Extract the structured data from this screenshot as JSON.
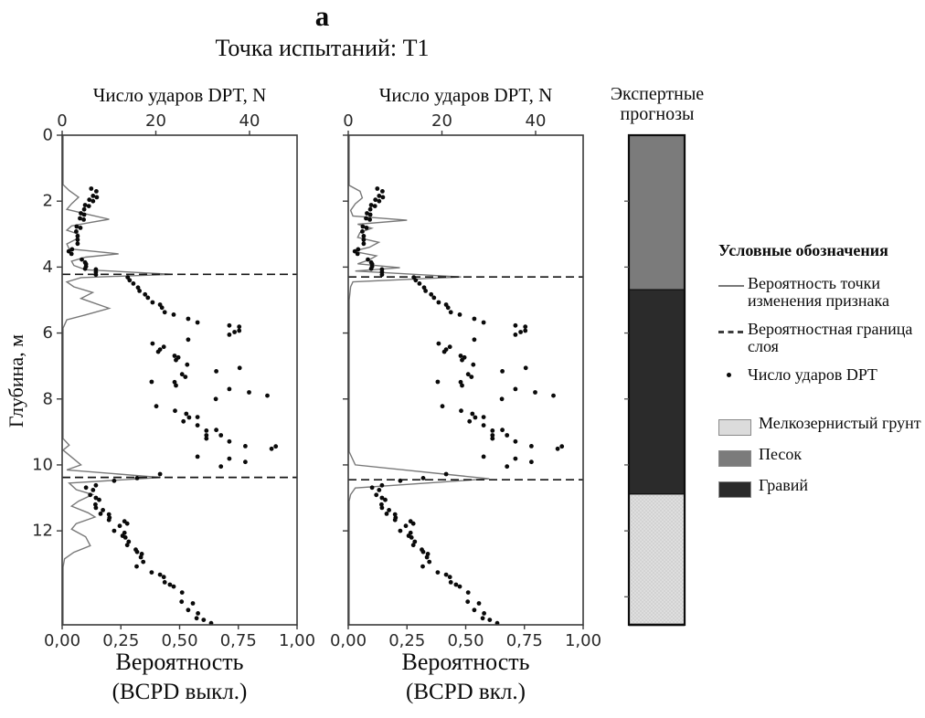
{
  "title_letter": "а",
  "subtitle": "Точка испытаний: Т1",
  "panels": [
    {
      "top_axis_label": "Число ударов DPT, N",
      "bottom_label": "Вероятность",
      "bottom_sublabel": "(BCPD выкл.)"
    },
    {
      "top_axis_label": "Число ударов DPT, N",
      "bottom_label": "Вероятность",
      "bottom_sublabel": "(BCPD вкл.)"
    }
  ],
  "axes": {
    "depth_label": "Глубина, м",
    "depth_ticks": [
      0,
      2,
      4,
      6,
      8,
      10,
      12
    ],
    "top_ticks": [
      0,
      20,
      40
    ],
    "prob_tick_labels": [
      "0,00",
      "0,25",
      "0,50",
      "0,75",
      "1,00"
    ],
    "prob_ticks": [
      0,
      0.25,
      0.5,
      0.75,
      1.0
    ]
  },
  "expert_column": {
    "header": "Экспертные прогнозы",
    "layers": [
      {
        "label": "Песок",
        "from_m": 0,
        "to_m": 4.7,
        "color": "#7b7b7b"
      },
      {
        "label": "Гравий",
        "from_m": 4.7,
        "to_m": 10.9,
        "color": "#2b2b2b"
      },
      {
        "label": "Мелкозернистый грунт",
        "from_m": 10.9,
        "to_m": 14.85,
        "color": "#dcdcdc"
      }
    ]
  },
  "legend": {
    "title": "Условные обозначения",
    "items": [
      {
        "marker": "solid-line",
        "label": "Вероятность точки изменения признака",
        "color": "#787878"
      },
      {
        "marker": "dashed-line",
        "label": "Вероятностная граница слоя",
        "color": "#3d3d3d"
      },
      {
        "marker": "dot",
        "label": "Число ударов DPT",
        "color": "#0a0a0a"
      }
    ],
    "soil_items": [
      {
        "label": "Мелкозернистый грунт",
        "color": "#dcdcdc"
      },
      {
        "label": "Песок",
        "color": "#7b7b7b"
      },
      {
        "label": "Гравий",
        "color": "#2b2b2b"
      }
    ]
  },
  "chart_data": {
    "type": "scatter",
    "title": "Точка испытаний: Т1",
    "x_top": {
      "label": "Число ударов DPT, N",
      "ticks": [
        0,
        20,
        40
      ],
      "range": [
        0,
        50.15
      ]
    },
    "x_bottom": {
      "label": "Вероятность",
      "ticks": [
        0,
        0.25,
        0.5,
        0.75,
        1.0
      ],
      "range": [
        0,
        1
      ]
    },
    "y": {
      "label": "Глубина, м",
      "ticks": [
        0,
        2,
        4,
        6,
        8,
        10,
        12
      ],
      "range": [
        0,
        14.85
      ],
      "inverted": true
    },
    "dpt_points_N_depth": [
      [
        6.2,
        1.62
      ],
      [
        7.3,
        1.7
      ],
      [
        6.6,
        1.84
      ],
      [
        7.4,
        1.88
      ],
      [
        5.8,
        1.96
      ],
      [
        6.6,
        2.0
      ],
      [
        4.9,
        2.12
      ],
      [
        5.7,
        2.15
      ],
      [
        4.7,
        2.25
      ],
      [
        4.0,
        2.37
      ],
      [
        4.7,
        2.41
      ],
      [
        3.8,
        2.52
      ],
      [
        4.6,
        2.56
      ],
      [
        3.1,
        2.77
      ],
      [
        3.9,
        2.81
      ],
      [
        3.0,
        2.92
      ],
      [
        3.3,
        3.06
      ],
      [
        3.3,
        3.17
      ],
      [
        3.3,
        3.29
      ],
      [
        2.1,
        3.46
      ],
      [
        1.4,
        3.52
      ],
      [
        2.0,
        3.6
      ],
      [
        4.2,
        3.77
      ],
      [
        4.9,
        3.86
      ],
      [
        5.1,
        3.91
      ],
      [
        5.1,
        3.98
      ],
      [
        4.9,
        4.05
      ],
      [
        7.2,
        4.07
      ],
      [
        7.2,
        4.15
      ],
      [
        7.2,
        4.23
      ],
      [
        14.0,
        4.31
      ],
      [
        14.4,
        4.4
      ],
      [
        15.2,
        4.5
      ],
      [
        16.2,
        4.62
      ],
      [
        16.5,
        4.72
      ],
      [
        17.7,
        4.83
      ],
      [
        18.3,
        4.93
      ],
      [
        19.3,
        5.07
      ],
      [
        20.9,
        5.14
      ],
      [
        21.3,
        5.23
      ],
      [
        21.9,
        5.37
      ],
      [
        23.8,
        5.44
      ],
      [
        26.9,
        5.57
      ],
      [
        28.9,
        5.68
      ],
      [
        35.7,
        5.77
      ],
      [
        37.8,
        5.81
      ],
      [
        37.8,
        5.93
      ],
      [
        36.8,
        5.97
      ],
      [
        35.7,
        6.05
      ],
      [
        26.9,
        6.2
      ],
      [
        19.3,
        6.32
      ],
      [
        21.7,
        6.42
      ],
      [
        20.9,
        6.5
      ],
      [
        20.5,
        6.57
      ],
      [
        24.0,
        6.69
      ],
      [
        24.8,
        6.74
      ],
      [
        24.3,
        6.82
      ],
      [
        26.7,
        6.96
      ],
      [
        37.9,
        7.06
      ],
      [
        32.9,
        7.16
      ],
      [
        25.6,
        7.25
      ],
      [
        26.3,
        7.33
      ],
      [
        19.1,
        7.48
      ],
      [
        24.0,
        7.49
      ],
      [
        24.3,
        7.59
      ],
      [
        35.7,
        7.7
      ],
      [
        39.9,
        7.8
      ],
      [
        43.8,
        7.9
      ],
      [
        32.8,
        8.0
      ],
      [
        20.1,
        8.22
      ],
      [
        24.1,
        8.36
      ],
      [
        26.5,
        8.45
      ],
      [
        28.9,
        8.55
      ],
      [
        27.1,
        8.56
      ],
      [
        25.9,
        8.68
      ],
      [
        28.9,
        8.8
      ],
      [
        32.9,
        8.94
      ],
      [
        30.8,
        8.96
      ],
      [
        30.8,
        9.1
      ],
      [
        33.9,
        9.1
      ],
      [
        30.8,
        9.2
      ],
      [
        35.7,
        9.29
      ],
      [
        39.1,
        9.43
      ],
      [
        45.6,
        9.44
      ],
      [
        44.7,
        9.51
      ],
      [
        28.9,
        9.75
      ],
      [
        35.7,
        9.81
      ],
      [
        39.1,
        9.91
      ],
      [
        33.9,
        10.05
      ],
      [
        20.9,
        10.28
      ],
      [
        16.0,
        10.4
      ],
      [
        11.1,
        10.48
      ],
      [
        7.2,
        10.62
      ],
      [
        5.1,
        10.69
      ],
      [
        6.6,
        10.76
      ],
      [
        6.0,
        10.91
      ],
      [
        7.2,
        11.0
      ],
      [
        7.9,
        11.06
      ],
      [
        7.1,
        11.2
      ],
      [
        7.2,
        11.3
      ],
      [
        8.7,
        11.37
      ],
      [
        8.2,
        11.48
      ],
      [
        10.0,
        11.5
      ],
      [
        10.1,
        11.6
      ],
      [
        10.0,
        11.67
      ],
      [
        13.3,
        11.71
      ],
      [
        13.9,
        11.78
      ],
      [
        12.3,
        11.85
      ],
      [
        11.1,
        12.0
      ],
      [
        13.3,
        12.06
      ],
      [
        12.9,
        12.15
      ],
      [
        13.5,
        12.2
      ],
      [
        14.2,
        12.33
      ],
      [
        13.9,
        12.43
      ],
      [
        15.7,
        12.57
      ],
      [
        16.0,
        12.64
      ],
      [
        17.0,
        12.7
      ],
      [
        16.8,
        12.8
      ],
      [
        17.3,
        12.94
      ],
      [
        15.9,
        13.08
      ],
      [
        19.1,
        13.26
      ],
      [
        20.9,
        13.33
      ],
      [
        21.7,
        13.4
      ],
      [
        21.9,
        13.56
      ],
      [
        23.0,
        13.63
      ],
      [
        23.8,
        13.69
      ],
      [
        25.6,
        13.87
      ],
      [
        25.5,
        14.15
      ],
      [
        27.9,
        14.2
      ],
      [
        26.9,
        14.4
      ],
      [
        29.0,
        14.5
      ],
      [
        28.7,
        14.65
      ],
      [
        30.2,
        14.7
      ],
      [
        31.8,
        14.8
      ]
    ],
    "panels": [
      {
        "name": "BCPD выкл.",
        "layer_boundaries_depth_m": [
          4.22,
          10.38
        ],
        "changepoint_curve_prob_depth": [
          [
            0.004,
            0
          ],
          [
            0.004,
            1.5
          ],
          [
            0.03,
            1.68
          ],
          [
            0.07,
            1.88
          ],
          [
            0.04,
            2.08
          ],
          [
            0.02,
            2.25
          ],
          [
            0.12,
            2.42
          ],
          [
            0.2,
            2.55
          ],
          [
            0.12,
            2.65
          ],
          [
            0.04,
            2.75
          ],
          [
            0.02,
            2.88
          ],
          [
            0.07,
            3.0
          ],
          [
            0.06,
            3.15
          ],
          [
            0.02,
            3.3
          ],
          [
            0.03,
            3.45
          ],
          [
            0.24,
            3.6
          ],
          [
            0.1,
            3.7
          ],
          [
            0.04,
            3.82
          ],
          [
            0.05,
            3.95
          ],
          [
            0.1,
            4.08
          ],
          [
            0.47,
            4.22
          ],
          [
            0.08,
            4.32
          ],
          [
            0.02,
            4.45
          ],
          [
            0.05,
            4.6
          ],
          [
            0.13,
            4.77
          ],
          [
            0.08,
            4.95
          ],
          [
            0.2,
            5.25
          ],
          [
            0.1,
            5.45
          ],
          [
            0.02,
            5.6
          ],
          [
            0.004,
            5.85
          ],
          [
            0.004,
            9.2
          ],
          [
            0.03,
            9.4
          ],
          [
            0.004,
            9.55
          ],
          [
            0.08,
            10.0
          ],
          [
            0.02,
            10.15
          ],
          [
            0.42,
            10.38
          ],
          [
            0.03,
            10.55
          ],
          [
            0.06,
            10.75
          ],
          [
            0.13,
            10.9
          ],
          [
            0.07,
            11.1
          ],
          [
            0.04,
            11.25
          ],
          [
            0.11,
            11.45
          ],
          [
            0.14,
            11.58
          ],
          [
            0.06,
            11.78
          ],
          [
            0.04,
            11.95
          ],
          [
            0.1,
            12.18
          ],
          [
            0.12,
            12.45
          ],
          [
            0.05,
            12.65
          ],
          [
            0.01,
            12.85
          ],
          [
            0.004,
            13.1
          ],
          [
            0.004,
            14.85
          ]
        ]
      },
      {
        "name": "BCPD вкл.",
        "layer_boundaries_depth_m": [
          4.3,
          10.45
        ],
        "changepoint_curve_prob_depth": [
          [
            0.004,
            0
          ],
          [
            0.004,
            1.52
          ],
          [
            0.05,
            1.7
          ],
          [
            0.06,
            1.9
          ],
          [
            0.03,
            2.08
          ],
          [
            0.01,
            2.28
          ],
          [
            0.02,
            2.45
          ],
          [
            0.25,
            2.58
          ],
          [
            0.04,
            2.7
          ],
          [
            0.1,
            2.82
          ],
          [
            0.05,
            2.95
          ],
          [
            0.04,
            3.1
          ],
          [
            0.13,
            3.25
          ],
          [
            0.09,
            3.4
          ],
          [
            0.02,
            3.52
          ],
          [
            0.12,
            3.66
          ],
          [
            0.09,
            3.78
          ],
          [
            0.04,
            3.9
          ],
          [
            0.22,
            4.02
          ],
          [
            0.03,
            4.12
          ],
          [
            0.48,
            4.3
          ],
          [
            0.02,
            4.45
          ],
          [
            0.01,
            4.6
          ],
          [
            0.004,
            5.0
          ],
          [
            0.004,
            9.6
          ],
          [
            0.03,
            10.0
          ],
          [
            0.6,
            10.42
          ],
          [
            0.03,
            10.7
          ],
          [
            0.01,
            10.9
          ],
          [
            0.004,
            11.1
          ],
          [
            0.004,
            14.85
          ]
        ]
      }
    ],
    "expert_layers": [
      {
        "label": "Песок",
        "from_m": 0,
        "to_m": 4.7,
        "color": "#7b7b7b"
      },
      {
        "label": "Гравий",
        "from_m": 4.7,
        "to_m": 10.9,
        "color": "#2b2b2b"
      },
      {
        "label": "Мелкозернистый грунт",
        "from_m": 10.9,
        "to_m": 14.85,
        "color": "#dcdcdc"
      }
    ]
  }
}
